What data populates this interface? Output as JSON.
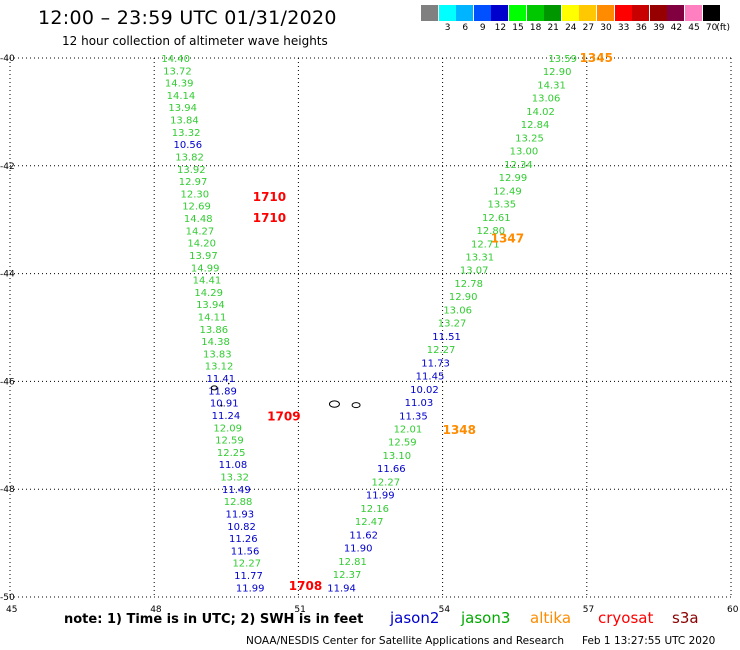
{
  "header": {
    "title": "12:00 – 23:59 UTC 01/31/2020",
    "subtitle": "12 hour collection of altimeter wave heights"
  },
  "color_scale": {
    "unit_label": "(ft)",
    "entries": [
      {
        "label": "",
        "color": "#808080"
      },
      {
        "label": "3",
        "color": "#00ffff"
      },
      {
        "label": "6",
        "color": "#00b4ff"
      },
      {
        "label": "9",
        "color": "#0050ff"
      },
      {
        "label": "12",
        "color": "#0000cc"
      },
      {
        "label": "15",
        "color": "#00ff00"
      },
      {
        "label": "18",
        "color": "#00c800"
      },
      {
        "label": "21",
        "color": "#009600"
      },
      {
        "label": "24",
        "color": "#ffff00"
      },
      {
        "label": "27",
        "color": "#ffc800"
      },
      {
        "label": "30",
        "color": "#ff8c00"
      },
      {
        "label": "33",
        "color": "#ff0000"
      },
      {
        "label": "36",
        "color": "#c80000"
      },
      {
        "label": "39",
        "color": "#960000"
      },
      {
        "label": "42",
        "color": "#800040"
      },
      {
        "label": "45",
        "color": "#ff80c0"
      },
      {
        "label": "70",
        "color": "#000000"
      }
    ]
  },
  "map": {
    "lon_ticks": [
      "45",
      "48",
      "51",
      "54",
      "57",
      "60"
    ],
    "lat_ticks": [
      "-40",
      "-42",
      "-44",
      "-46",
      "-48",
      "-50"
    ],
    "lon_range": [
      45,
      60
    ],
    "lat_range": [
      -40,
      -50
    ],
    "track_west": {
      "lon_start": 48.15,
      "lon_end": 49.7,
      "values": [
        {
          "v": "14.40",
          "c": "#33cc33"
        },
        {
          "v": "13.72",
          "c": "#33cc33"
        },
        {
          "v": "14.39",
          "c": "#33cc33"
        },
        {
          "v": "14.14",
          "c": "#33cc33"
        },
        {
          "v": "13.94",
          "c": "#33cc33"
        },
        {
          "v": "13.84",
          "c": "#33cc33"
        },
        {
          "v": "13.32",
          "c": "#33cc33"
        },
        {
          "v": "10.56",
          "c": "#0000cc"
        },
        {
          "v": "13.82",
          "c": "#33cc33"
        },
        {
          "v": "13.92",
          "c": "#33cc33"
        },
        {
          "v": "12.97",
          "c": "#33cc33"
        },
        {
          "v": "12.30",
          "c": "#33cc33"
        },
        {
          "v": "12.69",
          "c": "#33cc33"
        },
        {
          "v": "14.48",
          "c": "#33cc33"
        },
        {
          "v": "14.27",
          "c": "#33cc33"
        },
        {
          "v": "14.20",
          "c": "#33cc33"
        },
        {
          "v": "13.97",
          "c": "#33cc33"
        },
        {
          "v": "14.99",
          "c": "#33cc33"
        },
        {
          "v": "14.41",
          "c": "#33cc33"
        },
        {
          "v": "14.29",
          "c": "#33cc33"
        },
        {
          "v": "13.94",
          "c": "#33cc33"
        },
        {
          "v": "14.11",
          "c": "#33cc33"
        },
        {
          "v": "13.86",
          "c": "#33cc33"
        },
        {
          "v": "14.38",
          "c": "#33cc33"
        },
        {
          "v": "13.83",
          "c": "#33cc33"
        },
        {
          "v": "13.12",
          "c": "#33cc33"
        },
        {
          "v": "11.41",
          "c": "#0000cc"
        },
        {
          "v": "11.89",
          "c": "#0000cc"
        },
        {
          "v": "10.91",
          "c": "#0000cc"
        },
        {
          "v": "11.24",
          "c": "#0000cc"
        },
        {
          "v": "12.09",
          "c": "#33cc33"
        },
        {
          "v": "12.59",
          "c": "#33cc33"
        },
        {
          "v": "12.25",
          "c": "#33cc33"
        },
        {
          "v": "11.08",
          "c": "#0000cc"
        },
        {
          "v": "13.32",
          "c": "#33cc33"
        },
        {
          "v": "11.49",
          "c": "#0000cc"
        },
        {
          "v": "12.88",
          "c": "#33cc33"
        },
        {
          "v": "11.93",
          "c": "#0000cc"
        },
        {
          "v": "10.82",
          "c": "#0000cc"
        },
        {
          "v": "11.26",
          "c": "#0000cc"
        },
        {
          "v": "11.56",
          "c": "#0000cc"
        },
        {
          "v": "12.27",
          "c": "#33cc33"
        },
        {
          "v": "11.77",
          "c": "#0000cc"
        },
        {
          "v": "11.99",
          "c": "#0000cc"
        }
      ]
    },
    "track_east": {
      "lon_start": 56.2,
      "lon_end": 51.6,
      "values": [
        {
          "v": "13.59",
          "c": "#33cc33"
        },
        {
          "v": "12.90",
          "c": "#33cc33"
        },
        {
          "v": "14.31",
          "c": "#33cc33"
        },
        {
          "v": "13.06",
          "c": "#33cc33"
        },
        {
          "v": "14.02",
          "c": "#33cc33"
        },
        {
          "v": "12.84",
          "c": "#33cc33"
        },
        {
          "v": "13.25",
          "c": "#33cc33"
        },
        {
          "v": "13.00",
          "c": "#33cc33"
        },
        {
          "v": "12.34",
          "c": "#33cc33"
        },
        {
          "v": "12.99",
          "c": "#33cc33"
        },
        {
          "v": "12.49",
          "c": "#33cc33"
        },
        {
          "v": "13.35",
          "c": "#33cc33"
        },
        {
          "v": "12.61",
          "c": "#33cc33"
        },
        {
          "v": "12.80",
          "c": "#33cc33"
        },
        {
          "v": "12.71",
          "c": "#33cc33"
        },
        {
          "v": "13.31",
          "c": "#33cc33"
        },
        {
          "v": "13.07",
          "c": "#33cc33"
        },
        {
          "v": "12.78",
          "c": "#33cc33"
        },
        {
          "v": "12.90",
          "c": "#33cc33"
        },
        {
          "v": "13.06",
          "c": "#33cc33"
        },
        {
          "v": "13.27",
          "c": "#33cc33"
        },
        {
          "v": "11.51",
          "c": "#0000cc"
        },
        {
          "v": "12.27",
          "c": "#33cc33"
        },
        {
          "v": "11.73",
          "c": "#0000cc"
        },
        {
          "v": "11.45",
          "c": "#0000cc"
        },
        {
          "v": "10.02",
          "c": "#0000cc"
        },
        {
          "v": "11.03",
          "c": "#0000cc"
        },
        {
          "v": "11.35",
          "c": "#0000cc"
        },
        {
          "v": "12.01",
          "c": "#33cc33"
        },
        {
          "v": "12.59",
          "c": "#33cc33"
        },
        {
          "v": "13.10",
          "c": "#33cc33"
        },
        {
          "v": "11.66",
          "c": "#0000cc"
        },
        {
          "v": "12.27",
          "c": "#33cc33"
        },
        {
          "v": "11.99",
          "c": "#0000cc"
        },
        {
          "v": "12.16",
          "c": "#33cc33"
        },
        {
          "v": "12.47",
          "c": "#33cc33"
        },
        {
          "v": "11.62",
          "c": "#0000cc"
        },
        {
          "v": "11.90",
          "c": "#0000cc"
        },
        {
          "v": "12.81",
          "c": "#33cc33"
        },
        {
          "v": "12.37",
          "c": "#33cc33"
        },
        {
          "v": "11.94",
          "c": "#0000cc"
        }
      ]
    },
    "pass_times": [
      {
        "t": "1345",
        "c": "#ff8c00",
        "lon": 56.85,
        "lat": -40.0
      },
      {
        "t": "1710",
        "c": "#ff0000",
        "lon": 50.05,
        "lat": -42.58
      },
      {
        "t": "1710",
        "c": "#ff0000",
        "lon": 50.05,
        "lat": -42.97
      },
      {
        "t": "1347",
        "c": "#ff8c00",
        "lon": 55.0,
        "lat": -43.35
      },
      {
        "t": "1709",
        "c": "#ff0000",
        "lon": 50.35,
        "lat": -46.65
      },
      {
        "t": "1348",
        "c": "#ff8c00",
        "lon": 54.0,
        "lat": -46.9
      },
      {
        "t": "1708",
        "c": "#ff0000",
        "lon": 50.8,
        "lat": -49.8
      }
    ]
  },
  "footer": {
    "note": "note:  1) Time is in UTC; 2) SWH is in feet",
    "legend": [
      {
        "name": "jason2",
        "color": "#0000cc"
      },
      {
        "name": "jason3",
        "color": "#00aa00"
      },
      {
        "name": "altika",
        "color": "#ff8c00"
      },
      {
        "name": "cryosat",
        "color": "#ff0000"
      },
      {
        "name": "s3a",
        "color": "#8b0000"
      }
    ],
    "credit": "NOAA/NESDIS Center for Satellite Applications and Research",
    "timestamp": "Feb  1 13:27:55 UTC 2020"
  }
}
